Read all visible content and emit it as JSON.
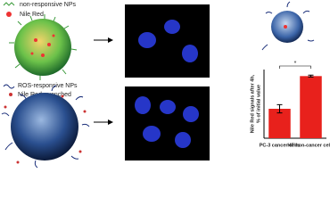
{
  "legend_top": {
    "items": [
      "non-responsive NPs",
      "Nile Red"
    ]
  },
  "legend_bottom": {
    "items": [
      "ROS-responsive NPs",
      "Nile Red-quenched"
    ]
  },
  "chart_data": {
    "type": "bar",
    "ylabel": [
      "Nile Red signals after 4h,",
      "% of initial value"
    ],
    "categories": [
      "PC-3 cancer cells",
      "HF non-cancer cells"
    ],
    "values": [
      18,
      38
    ],
    "errors": [
      2.5,
      0.6
    ],
    "color": "#e8211c",
    "ylim": [
      0,
      42
    ],
    "annotations": [
      "*"
    ]
  }
}
